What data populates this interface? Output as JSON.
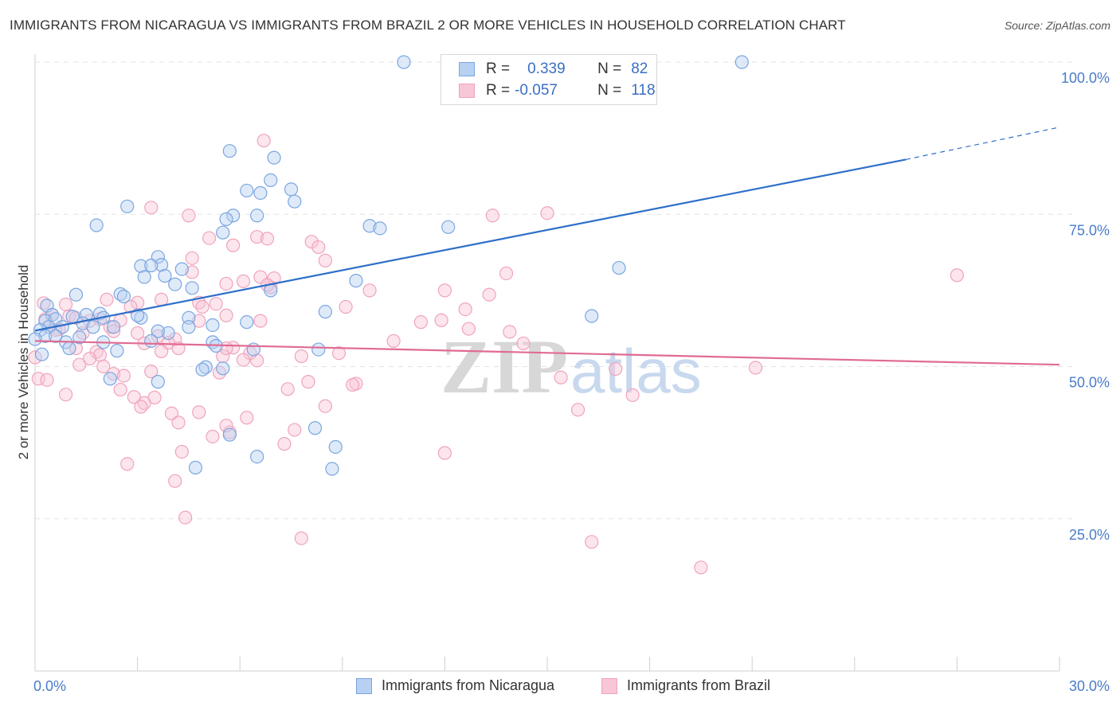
{
  "title": "IMMIGRANTS FROM NICARAGUA VS IMMIGRANTS FROM BRAZIL 2 OR MORE VEHICLES IN HOUSEHOLD CORRELATION CHART",
  "source": "Source: ZipAtlas.com",
  "legend": {
    "r_label": "R =",
    "n_label": "N =",
    "nicaragua": {
      "r": "0.339",
      "n": "82"
    },
    "brazil": {
      "r": "-0.057",
      "n": "118"
    }
  },
  "watermark": {
    "part1": "ZIP",
    "part2": "atlas"
  },
  "chart_data": {
    "type": "scatter",
    "title": "IMMIGRANTS FROM NICARAGUA VS IMMIGRANTS FROM BRAZIL 2 OR MORE VEHICLES IN HOUSEHOLD CORRELATION CHART",
    "xlabel": "",
    "ylabel": "2 or more Vehicles in Household",
    "xlim": [
      0,
      30
    ],
    "ylim": [
      0,
      100
    ],
    "x_tick_labels": [
      "0.0%",
      "30.0%"
    ],
    "y_ticks": [
      25,
      50,
      75,
      100
    ],
    "y_tick_labels": [
      "25.0%",
      "50.0%",
      "75.0%",
      "100.0%"
    ],
    "colors": {
      "nicaragua": "#7aa6e0",
      "brazil": "#f0a3bd",
      "nicaragua_line": "#2e6fc9",
      "brazil_line": "#e06b93"
    },
    "series": [
      {
        "name": "Immigrants from Nicaragua",
        "trend": {
          "x0": 0,
          "y0": 55.9,
          "x1": 25.5,
          "y1": 84.0,
          "dash_to_x": 30,
          "dash_to_y": 89.3
        },
        "points": [
          [
            10.8,
            100
          ],
          [
            20.7,
            100
          ],
          [
            5.7,
            85.4
          ],
          [
            7.0,
            84.3
          ],
          [
            6.9,
            80.6
          ],
          [
            6.2,
            78.9
          ],
          [
            6.6,
            78.5
          ],
          [
            7.5,
            79.1
          ],
          [
            7.6,
            77.1
          ],
          [
            2.7,
            76.3
          ],
          [
            5.8,
            74.8
          ],
          [
            6.5,
            74.8
          ],
          [
            5.6,
            74.2
          ],
          [
            1.8,
            73.2
          ],
          [
            9.8,
            73.1
          ],
          [
            10.1,
            72.7
          ],
          [
            12.1,
            72.9
          ],
          [
            5.5,
            72.0
          ],
          [
            3.6,
            68.0
          ],
          [
            3.7,
            66.7
          ],
          [
            3.1,
            66.5
          ],
          [
            3.4,
            66.6
          ],
          [
            4.3,
            66.0
          ],
          [
            17.1,
            66.2
          ],
          [
            3.8,
            64.9
          ],
          [
            3.2,
            64.7
          ],
          [
            9.4,
            64.1
          ],
          [
            4.1,
            63.5
          ],
          [
            4.6,
            62.9
          ],
          [
            6.9,
            62.5
          ],
          [
            1.2,
            61.8
          ],
          [
            2.5,
            61.9
          ],
          [
            2.6,
            61.5
          ],
          [
            0.35,
            60.0
          ],
          [
            0.5,
            58.5
          ],
          [
            8.5,
            59.0
          ],
          [
            16.3,
            58.3
          ],
          [
            0.3,
            57.5
          ],
          [
            0.6,
            57.8
          ],
          [
            1.1,
            58.2
          ],
          [
            1.5,
            58.5
          ],
          [
            1.9,
            58.7
          ],
          [
            2.0,
            58.0
          ],
          [
            3.1,
            58.0
          ],
          [
            4.5,
            58.0
          ],
          [
            0.4,
            56.5
          ],
          [
            0.8,
            56.5
          ],
          [
            1.4,
            57.1
          ],
          [
            2.3,
            56.5
          ],
          [
            6.2,
            57.3
          ],
          [
            5.2,
            56.8
          ],
          [
            4.5,
            56.5
          ],
          [
            0.15,
            56.0
          ],
          [
            0.3,
            55.0
          ],
          [
            3.9,
            55.5
          ],
          [
            3.6,
            55.8
          ],
          [
            1.7,
            56.5
          ],
          [
            1.3,
            54.8
          ],
          [
            0.9,
            54.0
          ],
          [
            2.0,
            54.0
          ],
          [
            3.4,
            54.2
          ],
          [
            5.2,
            54.0
          ],
          [
            5.3,
            53.4
          ],
          [
            6.4,
            52.8
          ],
          [
            2.4,
            52.6
          ],
          [
            8.3,
            52.8
          ],
          [
            5.0,
            49.9
          ],
          [
            5.5,
            49.7
          ],
          [
            4.9,
            49.5
          ],
          [
            2.2,
            48.0
          ],
          [
            3.6,
            47.5
          ],
          [
            8.2,
            39.9
          ],
          [
            5.7,
            38.8
          ],
          [
            8.8,
            36.8
          ],
          [
            6.5,
            35.2
          ],
          [
            4.7,
            33.4
          ],
          [
            8.7,
            33.2
          ],
          [
            0.2,
            52.0
          ],
          [
            1.0,
            53.0
          ],
          [
            0.6,
            55.0
          ],
          [
            0.0,
            54.5
          ],
          [
            3.0,
            58.4
          ]
        ]
      },
      {
        "name": "Immigrants from Brazil",
        "trend": {
          "x0": 0,
          "y0": 54.2,
          "x1": 30,
          "y1": 50.3
        },
        "points": [
          [
            6.7,
            87.1
          ],
          [
            3.4,
            76.1
          ],
          [
            4.5,
            74.8
          ],
          [
            13.4,
            74.8
          ],
          [
            15.0,
            75.2
          ],
          [
            5.1,
            71.1
          ],
          [
            6.5,
            71.3
          ],
          [
            6.8,
            71.0
          ],
          [
            5.8,
            69.9
          ],
          [
            8.1,
            70.5
          ],
          [
            8.3,
            69.6
          ],
          [
            4.6,
            67.8
          ],
          [
            8.5,
            67.4
          ],
          [
            6.6,
            64.7
          ],
          [
            5.6,
            63.6
          ],
          [
            4.6,
            65.5
          ],
          [
            7.0,
            64.5
          ],
          [
            13.8,
            65.3
          ],
          [
            27.0,
            65.0
          ],
          [
            6.9,
            63.0
          ],
          [
            9.8,
            62.5
          ],
          [
            12.0,
            62.5
          ],
          [
            0.25,
            60.4
          ],
          [
            0.9,
            60.2
          ],
          [
            2.1,
            61.0
          ],
          [
            3.0,
            60.5
          ],
          [
            3.7,
            61.0
          ],
          [
            4.8,
            60.5
          ],
          [
            5.3,
            60.3
          ],
          [
            9.1,
            59.8
          ],
          [
            12.6,
            59.4
          ],
          [
            13.3,
            61.8
          ],
          [
            0.5,
            58.5
          ],
          [
            0.3,
            57.8
          ],
          [
            1.0,
            58.3
          ],
          [
            1.2,
            58.0
          ],
          [
            1.6,
            57.5
          ],
          [
            1.9,
            57.8
          ],
          [
            2.5,
            57.6
          ],
          [
            4.8,
            57.5
          ],
          [
            5.6,
            58.4
          ],
          [
            6.6,
            57.5
          ],
          [
            11.3,
            57.3
          ],
          [
            12.7,
            56.2
          ],
          [
            0.7,
            56.1
          ],
          [
            1.4,
            55.5
          ],
          [
            2.2,
            56.5
          ],
          [
            2.3,
            55.8
          ],
          [
            3.0,
            55.5
          ],
          [
            4.1,
            54.5
          ],
          [
            3.2,
            53.8
          ],
          [
            3.9,
            53.9
          ],
          [
            4.2,
            53.0
          ],
          [
            1.2,
            53.0
          ],
          [
            1.8,
            52.4
          ],
          [
            1.9,
            51.9
          ],
          [
            3.7,
            52.5
          ],
          [
            5.5,
            51.7
          ],
          [
            5.8,
            53.1
          ],
          [
            6.3,
            52.2
          ],
          [
            6.1,
            51.1
          ],
          [
            7.8,
            51.7
          ],
          [
            8.9,
            52.2
          ],
          [
            10.5,
            54.2
          ],
          [
            14.3,
            53.8
          ],
          [
            1.3,
            50.3
          ],
          [
            2.0,
            50.0
          ],
          [
            3.4,
            49.2
          ],
          [
            5.4,
            49.0
          ],
          [
            2.3,
            48.8
          ],
          [
            2.6,
            48.5
          ],
          [
            17.0,
            49.6
          ],
          [
            21.1,
            49.8
          ],
          [
            8.0,
            47.5
          ],
          [
            9.4,
            47.2
          ],
          [
            9.3,
            47.0
          ],
          [
            7.4,
            46.3
          ],
          [
            2.5,
            46.2
          ],
          [
            0.9,
            45.4
          ],
          [
            2.9,
            45.0
          ],
          [
            3.5,
            44.9
          ],
          [
            3.2,
            44.0
          ],
          [
            3.1,
            43.4
          ],
          [
            8.5,
            43.5
          ],
          [
            15.4,
            48.2
          ],
          [
            17.5,
            45.3
          ],
          [
            15.9,
            42.9
          ],
          [
            4.0,
            42.3
          ],
          [
            4.8,
            42.5
          ],
          [
            4.2,
            40.8
          ],
          [
            6.2,
            41.6
          ],
          [
            7.6,
            39.6
          ],
          [
            5.7,
            39.2
          ],
          [
            5.2,
            38.5
          ],
          [
            7.3,
            37.3
          ],
          [
            4.3,
            36.0
          ],
          [
            12.0,
            35.8
          ],
          [
            2.7,
            34.0
          ],
          [
            4.1,
            31.2
          ],
          [
            4.4,
            25.2
          ],
          [
            7.8,
            21.8
          ],
          [
            16.3,
            21.2
          ],
          [
            19.5,
            17.0
          ],
          [
            0.1,
            48.0
          ],
          [
            0.35,
            47.8
          ],
          [
            5.6,
            40.3
          ],
          [
            5.6,
            53.0
          ],
          [
            6.5,
            51.0
          ],
          [
            13.9,
            55.7
          ],
          [
            11.9,
            57.6
          ],
          [
            1.6,
            51.3
          ],
          [
            0.0,
            51.5
          ],
          [
            0.6,
            56.0
          ],
          [
            4.9,
            59.8
          ],
          [
            6.1,
            64.0
          ],
          [
            6.8,
            63.4
          ],
          [
            2.8,
            59.8
          ],
          [
            3.6,
            55.0
          ]
        ]
      }
    ]
  },
  "bottom_legend": {
    "nicaragua": "Immigrants from Nicaragua",
    "brazil": "Immigrants from Brazil"
  }
}
